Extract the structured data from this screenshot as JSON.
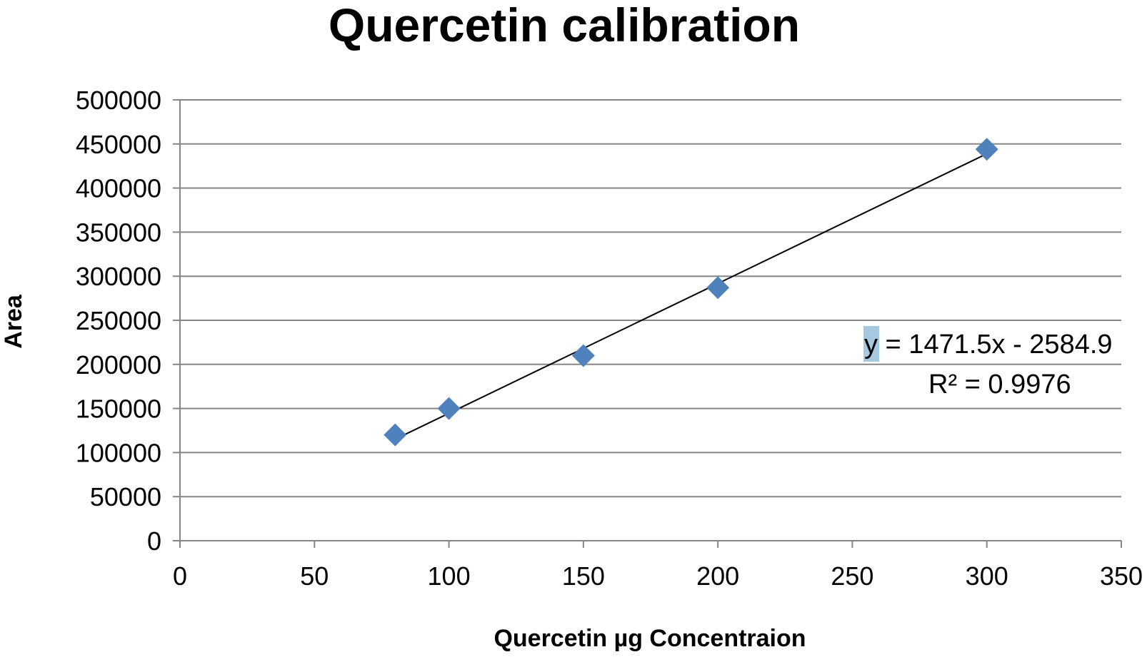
{
  "chart_data": {
    "type": "scatter",
    "title": "Quercetin calibration",
    "xlabel": "Quercetin µg Concentraion",
    "ylabel": "Area",
    "xlim": [
      0,
      350
    ],
    "ylim": [
      0,
      500000
    ],
    "x_ticks": [
      "0",
      "50",
      "100",
      "150",
      "200",
      "250",
      "300",
      "350"
    ],
    "y_ticks": [
      "0",
      "50000",
      "100000",
      "150000",
      "200000",
      "250000",
      "300000",
      "350000",
      "400000",
      "450000",
      "500000"
    ],
    "grid": true,
    "legend": "none",
    "series": [
      {
        "x": [
          80,
          100,
          150,
          200,
          300
        ],
        "y": [
          120000,
          150000,
          210000,
          287000,
          444000
        ],
        "color": "#4f81bd",
        "marker": "diamond"
      }
    ],
    "trendline": {
      "type": "linear",
      "slope": 1471.5,
      "intercept": -2584.9,
      "x_range": [
        80,
        300
      ],
      "color": "#000000",
      "equation_label": "y = 1471.5x - 2584.9",
      "r2_label": "R² = 0.9976",
      "highlight_color": "#a6c8e0"
    }
  }
}
